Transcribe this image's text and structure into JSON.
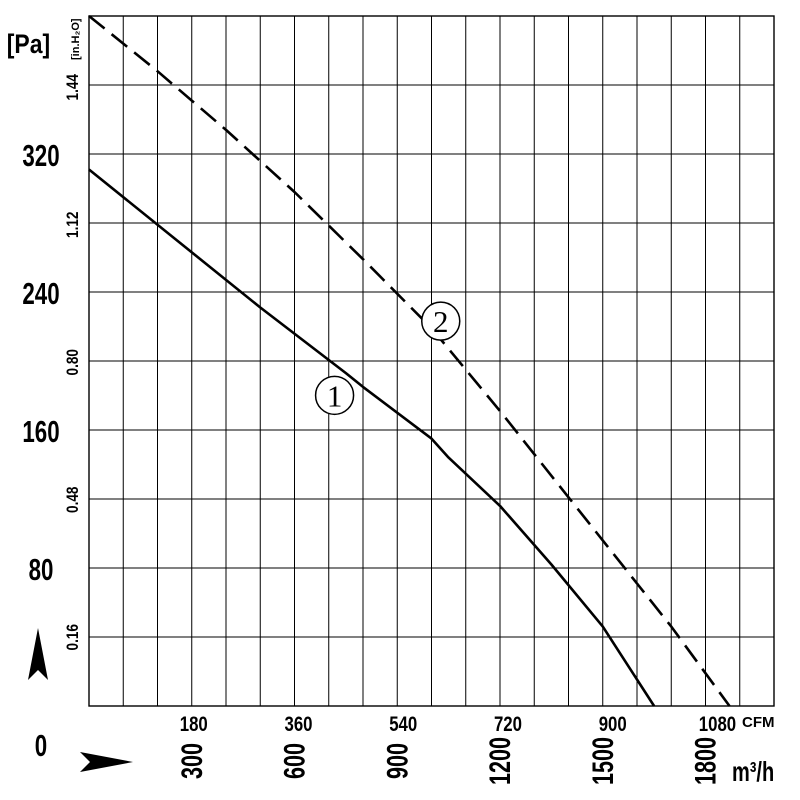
{
  "chart_data": {
    "type": "line",
    "units": {
      "y_primary": "[Pa]",
      "y_secondary": "[in.H₂O]",
      "x_primary": "m³/h",
      "x_secondary": "CFM"
    },
    "y_axis": {
      "range": [
        0,
        400
      ],
      "ticks": [
        "0",
        "80",
        "160",
        "240",
        "320"
      ],
      "tick_values": [
        0,
        80,
        160,
        240,
        320
      ]
    },
    "y2_axis": {
      "ticks": [
        "0.16",
        "0.48",
        "0.80",
        "1.12",
        "1.44"
      ],
      "tick_values": [
        0.16,
        0.48,
        0.8,
        1.12,
        1.44
      ]
    },
    "x_axis": {
      "range": [
        0,
        2000
      ],
      "ticks": [
        "300",
        "600",
        "900",
        "1200",
        "1500",
        "1800"
      ],
      "tick_values": [
        300,
        600,
        900,
        1200,
        1500,
        1800
      ]
    },
    "x2_axis": {
      "ticks": [
        "180",
        "360",
        "540",
        "720",
        "900",
        "1080"
      ],
      "tick_values": [
        180,
        360,
        540,
        720,
        900,
        1080
      ]
    },
    "grid": true,
    "series": [
      {
        "name": "1",
        "style": "solid",
        "color": "#000000",
        "x": [
          0,
          250,
          500,
          750,
          800,
          1000,
          1050,
          1200,
          1350,
          1500,
          1650
        ],
        "y": [
          311,
          271,
          231,
          193,
          185,
          155,
          144,
          116,
          82,
          46,
          0
        ]
      },
      {
        "name": "2",
        "style": "dashed",
        "color": "#000000",
        "x": [
          0,
          200,
          400,
          600,
          800,
          1000,
          1200,
          1400,
          1600,
          1700,
          1870
        ],
        "y": [
          400,
          368,
          334,
          298,
          259,
          219,
          171,
          121,
          71,
          46,
          0
        ]
      }
    ],
    "annotations": [
      {
        "text": "1",
        "x": 790,
        "y": 183
      },
      {
        "text": "2",
        "x": 1100,
        "y": 226
      }
    ]
  }
}
